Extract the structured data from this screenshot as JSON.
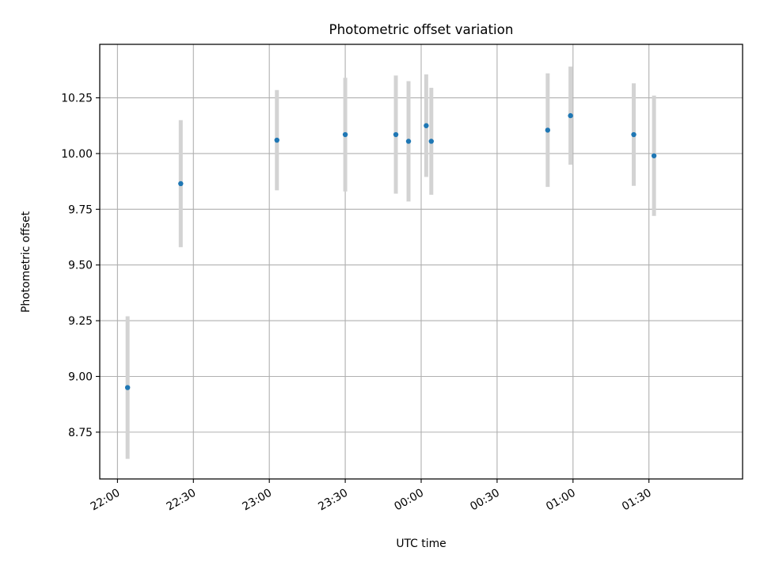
{
  "chart_data": {
    "type": "scatter",
    "title": "Photometric offset variation",
    "xlabel": "UTC time",
    "ylabel": "Photometric offset",
    "x_is_time": true,
    "xlim": [
      "21:53",
      "02:07"
    ],
    "ylim": [
      8.54,
      10.49
    ],
    "x_ticks": [
      "22:00",
      "22:30",
      "23:00",
      "23:30",
      "00:00",
      "00:30",
      "01:00",
      "01:30"
    ],
    "y_ticks": [
      "8.75",
      "9.00",
      "9.25",
      "9.50",
      "9.75",
      "10.00",
      "10.25"
    ],
    "grid": true,
    "marker_color": "#1f77b4",
    "errorbar_color": "#d3d3d3",
    "points": [
      {
        "x": "22:04",
        "y": 8.95,
        "yerr": 0.32
      },
      {
        "x": "22:25",
        "y": 9.865,
        "yerr": 0.285
      },
      {
        "x": "23:03",
        "y": 10.06,
        "yerr": 0.225
      },
      {
        "x": "23:30",
        "y": 10.085,
        "yerr": 0.255
      },
      {
        "x": "23:50",
        "y": 10.085,
        "yerr": 0.265
      },
      {
        "x": "23:55",
        "y": 10.055,
        "yerr": 0.27
      },
      {
        "x": "00:02",
        "y": 10.125,
        "yerr": 0.23
      },
      {
        "x": "00:04",
        "y": 10.055,
        "yerr": 0.24
      },
      {
        "x": "00:50",
        "y": 10.105,
        "yerr": 0.255
      },
      {
        "x": "00:59",
        "y": 10.17,
        "yerr": 0.22
      },
      {
        "x": "01:24",
        "y": 10.085,
        "yerr": 0.23
      },
      {
        "x": "01:32",
        "y": 9.99,
        "yerr": 0.27
      }
    ]
  }
}
